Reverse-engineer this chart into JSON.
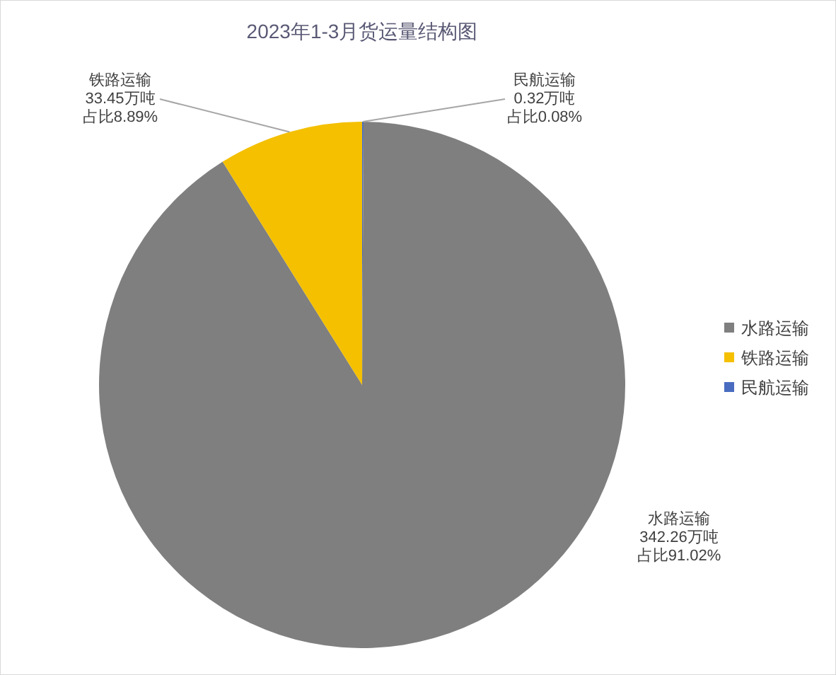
{
  "chart_data": {
    "type": "pie",
    "title": "2023年1-3月货运量结构图",
    "categories": [
      "水路运输",
      "铁路运输",
      "民航运输"
    ],
    "values": [
      342.26,
      33.45,
      0.32
    ],
    "colors": [
      "#7f7f7f",
      "#f4c000",
      "#4a6cc0"
    ],
    "value_labels": [
      "342.26万吨",
      "33.45万吨",
      "0.32万吨"
    ],
    "annotations": [
      {
        "text": "占比91.02%",
        "x": "水路运输"
      },
      {
        "text": "占比8.89%",
        "x": "铁路运输"
      },
      {
        "text": "占比0.08%",
        "x": "民航运输"
      }
    ],
    "legend": "right"
  }
}
